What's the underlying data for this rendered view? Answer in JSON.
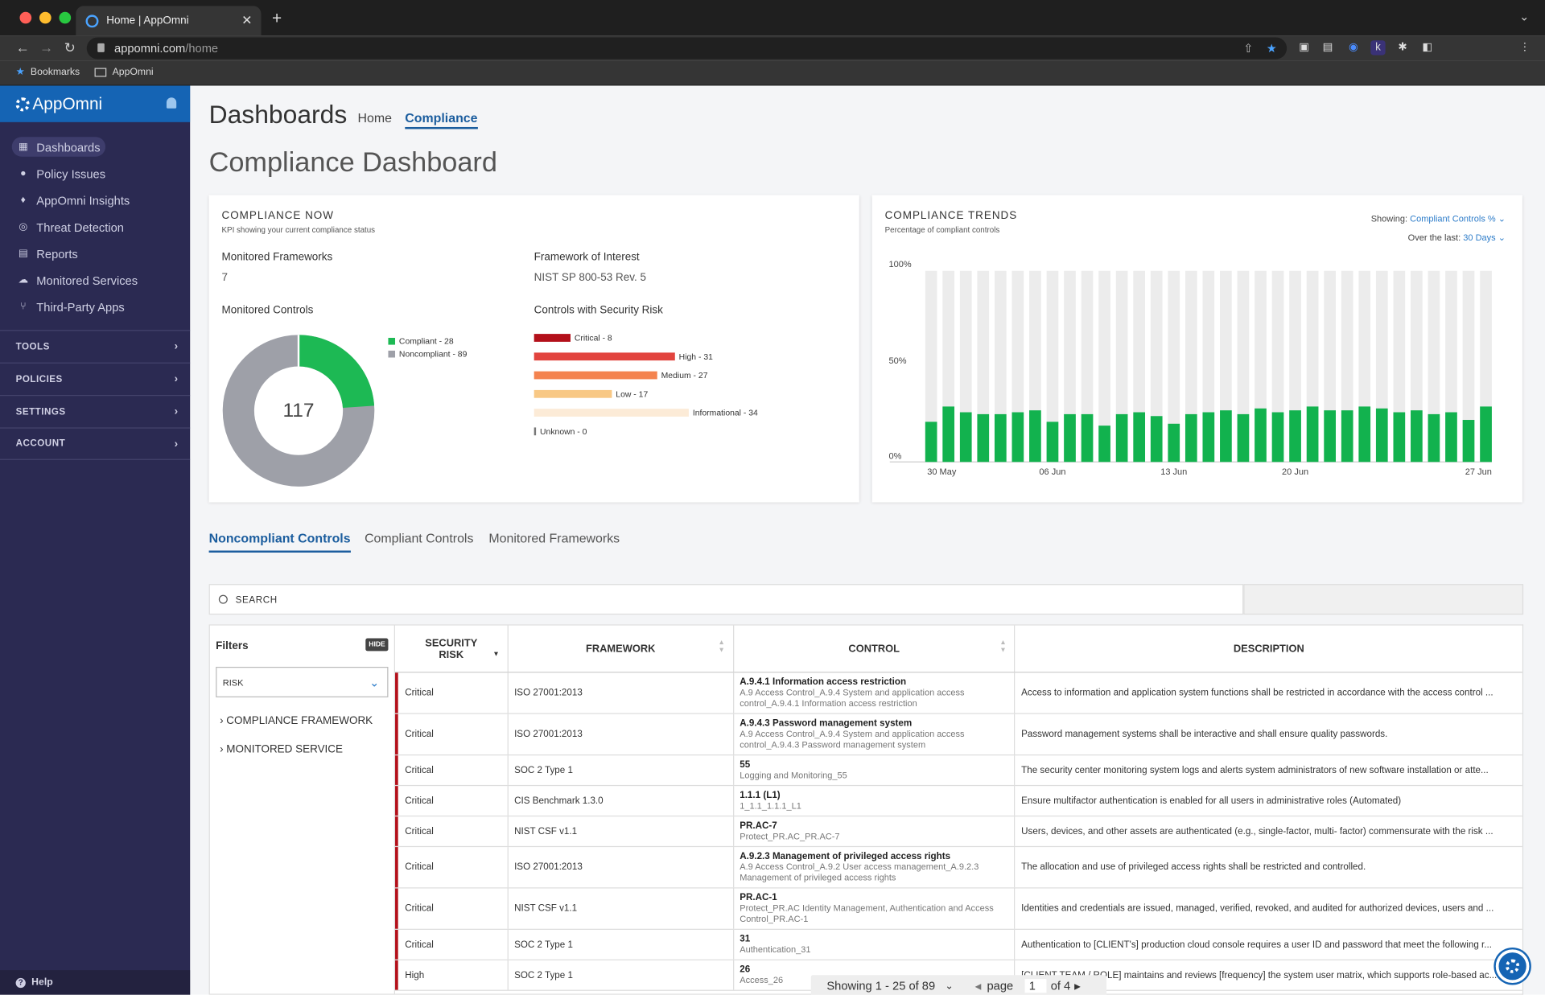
{
  "browser": {
    "tab_title": "Home | AppOmni",
    "url_host": "appomni.com",
    "url_path": "/home",
    "bookmarks": [
      "Bookmarks",
      "AppOmni"
    ]
  },
  "sidebar": {
    "logo": "AppOmni",
    "items": [
      {
        "label": "Dashboards",
        "icon": "grid-icon"
      },
      {
        "label": "Policy Issues",
        "icon": "alert-icon"
      },
      {
        "label": "AppOmni Insights",
        "icon": "bulb-icon"
      },
      {
        "label": "Threat Detection",
        "icon": "fingerprint-icon"
      },
      {
        "label": "Reports",
        "icon": "document-icon"
      },
      {
        "label": "Monitored Services",
        "icon": "cloud-icon"
      },
      {
        "label": "Third-Party Apps",
        "icon": "tree-icon"
      }
    ],
    "sections": [
      "TOOLS",
      "POLICIES",
      "SETTINGS",
      "ACCOUNT"
    ],
    "help": "Help"
  },
  "header": {
    "title": "Dashboards",
    "tabs": [
      "Home",
      "Compliance"
    ],
    "page_title": "Compliance Dashboard"
  },
  "now": {
    "title": "COMPLIANCE NOW",
    "subtitle": "KPI showing your current compliance status",
    "mf_label": "Monitored Frameworks",
    "mf_value": "7",
    "foi_label": "Framework of Interest",
    "foi_value": "NIST SP 800-53 Rev. 5",
    "mc_label": "Monitored Controls",
    "csr_label": "Controls with Security Risk",
    "total": "117",
    "legend_compliant": "Compliant - 28",
    "legend_non": "Noncompliant - 89"
  },
  "donut": {
    "compliant": 28,
    "noncompliant": 89,
    "colors": [
      "#1db954",
      "#9ea0a8"
    ]
  },
  "risk": [
    {
      "label": "Critical - 8",
      "value": 8,
      "color": "#b3101a"
    },
    {
      "label": "High - 31",
      "value": 31,
      "color": "#e2443e"
    },
    {
      "label": "Medium - 27",
      "value": 27,
      "color": "#f4834f"
    },
    {
      "label": "Low - 17",
      "value": 17,
      "color": "#f8c885"
    },
    {
      "label": "Informational - 34",
      "value": 34,
      "color": "#fcebd7"
    },
    {
      "label": "Unknown - 0",
      "value": 0,
      "color": "#777"
    }
  ],
  "trends": {
    "title": "COMPLIANCE TRENDS",
    "subtitle": "Percentage of compliant controls",
    "showing_label": "Showing:",
    "showing_value": "Compliant Controls %",
    "over_label": "Over the last:",
    "over_value": "30 Days"
  },
  "chart_data": {
    "type": "bar",
    "y_ticks": [
      "100%",
      "50%",
      "0%"
    ],
    "ylim": [
      0,
      100
    ],
    "x_ticks": [
      "30 May",
      "06 Jun",
      "13 Jun",
      "20 Jun",
      "27 Jun"
    ],
    "values": [
      21,
      29,
      26,
      25,
      25,
      26,
      27,
      21,
      25,
      25,
      19,
      25,
      26,
      24,
      20,
      25,
      26,
      27,
      25,
      28,
      26,
      27,
      29,
      27,
      27,
      29,
      28,
      26,
      27,
      25,
      26,
      22,
      29
    ],
    "colors": {
      "bar": "#12b24e",
      "track": "#ececec"
    }
  },
  "tabs": [
    "Noncompliant Controls",
    "Compliant Controls",
    "Monitored Frameworks"
  ],
  "search": {
    "label": "SEARCH"
  },
  "filters": {
    "title": "Filters",
    "hide": "HIDE",
    "select": "RISK",
    "items": [
      "COMPLIANCE FRAMEWORK",
      "MONITORED SERVICE"
    ]
  },
  "table": {
    "headers": [
      "SECURITY RISK",
      "FRAMEWORK",
      "CONTROL",
      "DESCRIPTION"
    ],
    "rows": [
      {
        "risk": "Critical",
        "framework": "ISO 27001:2013",
        "control": "A.9.4.1 Information access restriction",
        "sub": "A.9 Access Control_A.9.4 System and application access control_A.9.4.1 Information access restriction",
        "desc": "Access to information and application system functions shall be restricted in accordance with the access control ...",
        "h": 42
      },
      {
        "risk": "Critical",
        "framework": "ISO 27001:2013",
        "control": "A.9.4.3 Password management system",
        "sub": "A.9 Access Control_A.9.4 System and application access control_A.9.4.3 Password management system",
        "desc": "Password management systems shall be interactive and shall ensure quality passwords.",
        "h": 42
      },
      {
        "risk": "Critical",
        "framework": "SOC 2 Type 1",
        "control": "55",
        "sub": "Logging and Monitoring_55",
        "desc": "The security center monitoring system logs and alerts system administrators of new software installation or atte...",
        "h": 31
      },
      {
        "risk": "Critical",
        "framework": "CIS Benchmark 1.3.0",
        "control": "1.1.1 (L1)",
        "sub": "1_1.1_1.1.1_L1",
        "desc": "Ensure multifactor authentication is enabled for all users in administrative roles (Automated)",
        "h": 31
      },
      {
        "risk": "Critical",
        "framework": "NIST CSF v1.1",
        "control": "PR.AC-7",
        "sub": "Protect_PR.AC_PR.AC-7",
        "desc": "Users, devices, and other assets are authenticated (e.g., single-factor, multi- factor) commensurate with the risk ...",
        "h": 31
      },
      {
        "risk": "Critical",
        "framework": "ISO 27001:2013",
        "control": "A.9.2.3 Management of privileged access rights",
        "sub": "A.9 Access Control_A.9.2 User access management_A.9.2.3 Management of privileged access rights",
        "desc": "The allocation and use of privileged access rights shall be restricted and controlled.",
        "h": 42
      },
      {
        "risk": "Critical",
        "framework": "NIST CSF v1.1",
        "control": "PR.AC-1",
        "sub": "Protect_PR.AC Identity Management, Authentication and Access Control_PR.AC-1",
        "desc": "Identities and credentials are issued, managed, verified, revoked, and audited for authorized devices, users and ...",
        "h": 42
      },
      {
        "risk": "Critical",
        "framework": "SOC 2 Type 1",
        "control": "31",
        "sub": "Authentication_31",
        "desc": "Authentication to [CLIENT's] production cloud console requires a user ID and password that meet the following r...",
        "h": 31
      },
      {
        "risk": "High",
        "framework": "SOC 2 Type 1",
        "control": "26",
        "sub": "Access_26",
        "desc": "[CLIENT TEAM / ROLE] maintains and reviews [frequency] the system user matrix, which supports role-based ac...",
        "h": 31
      }
    ]
  },
  "pager": {
    "showing": "Showing 1 - 25 of 89",
    "page_label": "page",
    "page": "1",
    "of": "of 4"
  }
}
